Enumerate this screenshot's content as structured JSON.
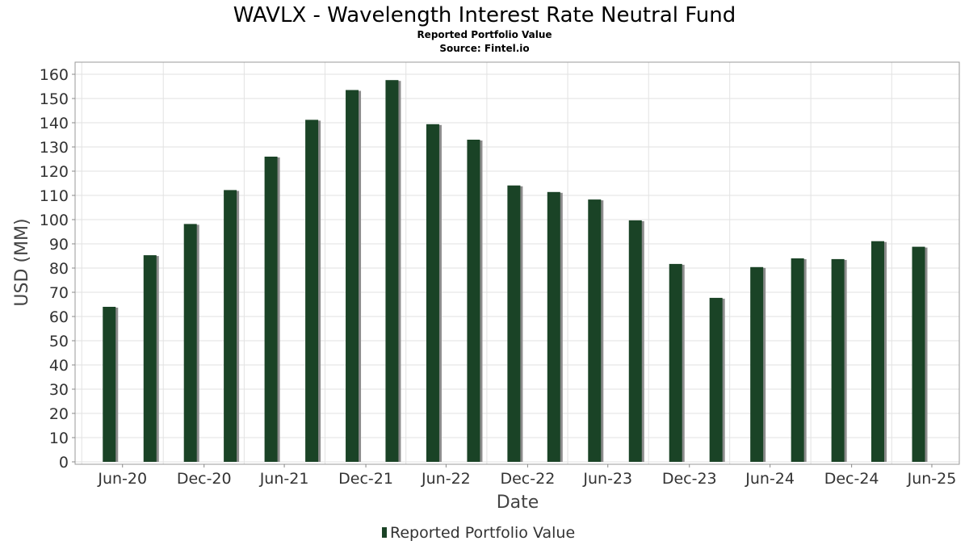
{
  "colors": {
    "bar": "#1a4326",
    "bar_shadow": "#8c8c8c",
    "grid": "#e2e2e2",
    "frame": "#999999"
  },
  "chart_data": {
    "type": "bar",
    "title": "WAVLX - Wavelength Interest Rate Neutral Fund",
    "subtitle": "Reported Portfolio Value",
    "source": "Source: Fintel.io",
    "xlabel": "Date",
    "ylabel": "USD (MM)",
    "ylim": [
      0,
      160
    ],
    "yticks": [
      0,
      10,
      20,
      30,
      40,
      50,
      60,
      70,
      80,
      90,
      100,
      110,
      120,
      130,
      140,
      150,
      160
    ],
    "xlim": [
      "2020-03-15",
      "2025-08-31"
    ],
    "xticks": [
      {
        "label": "Jun-20",
        "date": "2020-06-30"
      },
      {
        "label": "Dec-20",
        "date": "2020-12-31"
      },
      {
        "label": "Jun-21",
        "date": "2021-06-30"
      },
      {
        "label": "Dec-21",
        "date": "2021-12-31"
      },
      {
        "label": "Jun-22",
        "date": "2022-06-30"
      },
      {
        "label": "Dec-22",
        "date": "2022-12-31"
      },
      {
        "label": "Jun-23",
        "date": "2023-06-30"
      },
      {
        "label": "Dec-23",
        "date": "2023-12-31"
      },
      {
        "label": "Jun-24",
        "date": "2024-06-30"
      },
      {
        "label": "Dec-24",
        "date": "2024-12-31"
      },
      {
        "label": "Jun-25",
        "date": "2025-06-30"
      }
    ],
    "grid": true,
    "legend_position": "bottom-center",
    "series": [
      {
        "name": "Reported Portfolio Value",
        "points": [
          {
            "date": "2020-05-31",
            "value": 64
          },
          {
            "date": "2020-08-31",
            "value": 85.3
          },
          {
            "date": "2020-11-30",
            "value": 98.2
          },
          {
            "date": "2021-02-28",
            "value": 112.2
          },
          {
            "date": "2021-05-31",
            "value": 126
          },
          {
            "date": "2021-08-31",
            "value": 141.2
          },
          {
            "date": "2021-11-30",
            "value": 153.5
          },
          {
            "date": "2022-02-28",
            "value": 157.6
          },
          {
            "date": "2022-05-31",
            "value": 139.4
          },
          {
            "date": "2022-08-31",
            "value": 133
          },
          {
            "date": "2022-11-30",
            "value": 114.1
          },
          {
            "date": "2023-02-28",
            "value": 111.4
          },
          {
            "date": "2023-05-31",
            "value": 108.3
          },
          {
            "date": "2023-08-31",
            "value": 99.7
          },
          {
            "date": "2023-11-30",
            "value": 81.7
          },
          {
            "date": "2024-02-29",
            "value": 67.7
          },
          {
            "date": "2024-05-31",
            "value": 80.4
          },
          {
            "date": "2024-08-31",
            "value": 84
          },
          {
            "date": "2024-11-30",
            "value": 83.7
          },
          {
            "date": "2025-02-28",
            "value": 91.1
          },
          {
            "date": "2025-05-31",
            "value": 88.8
          }
        ]
      }
    ]
  }
}
